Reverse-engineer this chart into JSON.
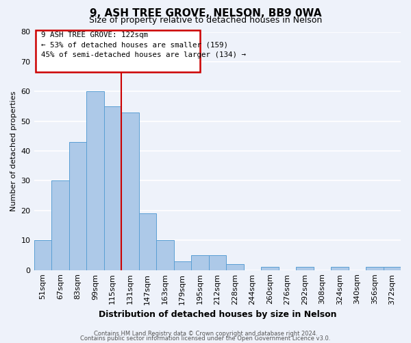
{
  "title": "9, ASH TREE GROVE, NELSON, BB9 0WA",
  "subtitle": "Size of property relative to detached houses in Nelson",
  "xlabel": "Distribution of detached houses by size in Nelson",
  "ylabel": "Number of detached properties",
  "bin_labels": [
    "51sqm",
    "67sqm",
    "83sqm",
    "99sqm",
    "115sqm",
    "131sqm",
    "147sqm",
    "163sqm",
    "179sqm",
    "195sqm",
    "212sqm",
    "228sqm",
    "244sqm",
    "260sqm",
    "276sqm",
    "292sqm",
    "308sqm",
    "324sqm",
    "340sqm",
    "356sqm",
    "372sqm"
  ],
  "bin_values": [
    10,
    30,
    43,
    60,
    55,
    53,
    19,
    10,
    3,
    5,
    5,
    2,
    0,
    1,
    0,
    1,
    0,
    1,
    0,
    1,
    1
  ],
  "bar_color": "#adc9e8",
  "bar_edge_color": "#5a9fd4",
  "background_color": "#eef2fa",
  "grid_color": "#ffffff",
  "ylim": [
    0,
    80
  ],
  "vline_color": "#cc0000",
  "annotation_text_line1": "9 ASH TREE GROVE: 122sqm",
  "annotation_text_line2": "← 53% of detached houses are smaller (159)",
  "annotation_text_line3": "45% of semi-detached houses are larger (134) →",
  "annotation_box_color": "#cc0000",
  "footer_line1": "Contains HM Land Registry data © Crown copyright and database right 2024.",
  "footer_line2": "Contains public sector information licensed under the Open Government Licence v3.0."
}
